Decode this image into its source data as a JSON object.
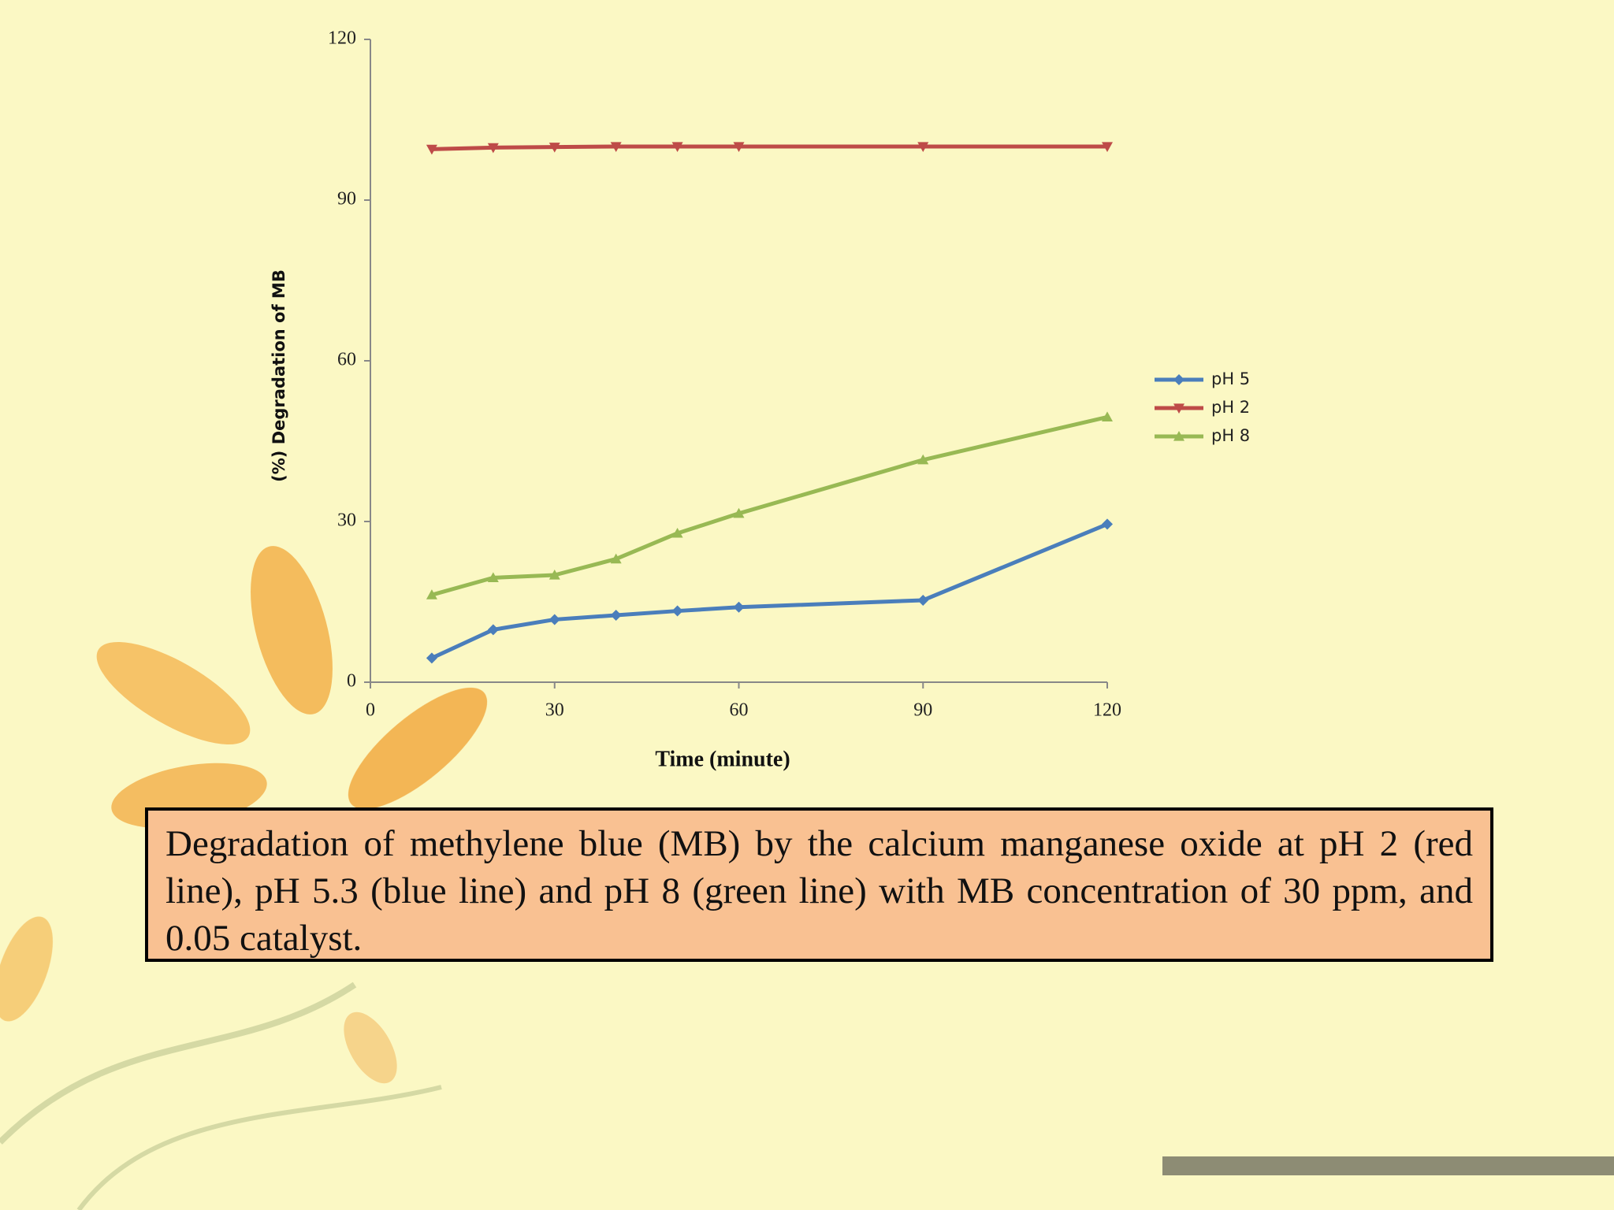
{
  "chart_data": {
    "type": "line",
    "ylabel": "(%) Degradation of MB",
    "xlabel": "Time (minute)",
    "x": [
      10,
      20,
      30,
      40,
      50,
      60,
      90,
      120
    ],
    "series": [
      {
        "name": "pH 5",
        "color": "#4a7ebb",
        "marker": "diamond",
        "values": [
          4.5,
          9.8,
          11.7,
          12.5,
          13.3,
          14,
          15.3,
          29.5
        ]
      },
      {
        "name": "pH 2",
        "color": "#be4b48",
        "marker": "triangle-down",
        "values": [
          99.5,
          99.8,
          99.9,
          100,
          100,
          100,
          100,
          100
        ]
      },
      {
        "name": "pH 8",
        "color": "#98b954",
        "marker": "triangle-up",
        "values": [
          16.3,
          19.5,
          20,
          23,
          27.8,
          31.5,
          41.5,
          49.5
        ]
      }
    ],
    "xlim": [
      0,
      120
    ],
    "xticks": [
      0,
      30,
      60,
      90,
      120
    ],
    "ylim": [
      0,
      120
    ],
    "yticks": [
      0,
      30,
      60,
      90,
      120
    ],
    "legend": "right"
  },
  "caption": "Degradation of methylene blue (MB) by the calcium manganese oxide at pH 2 (red line), pH 5.3 (blue line) and pH 8 (green line)  with  MB concentration of 30 ppm, and  0.05 catalyst."
}
